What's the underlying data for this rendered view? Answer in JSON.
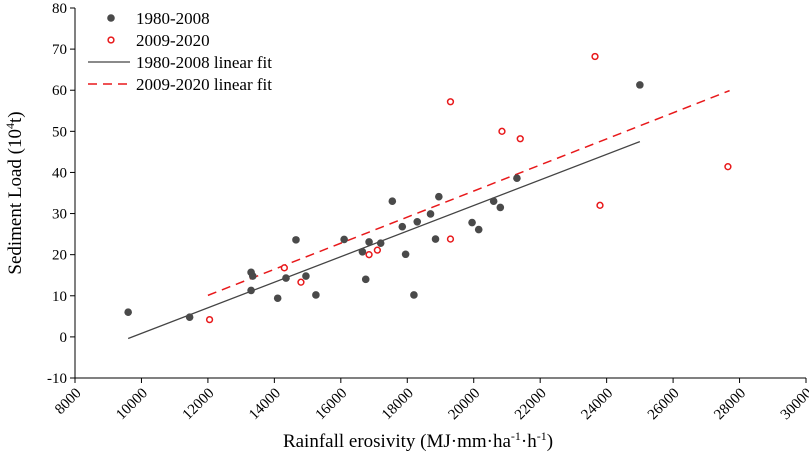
{
  "chart_data": {
    "type": "scatter",
    "xlabel_main": "Rainfall erosivity (MJ·mm·ha",
    "xlabel_sup1": "-1",
    "xlabel_mid": "·h",
    "xlabel_sup2": "-1",
    "xlabel_end": ")",
    "ylabel_main": "Sediment Load (10",
    "ylabel_sup": "4",
    "ylabel_end": "t)",
    "xlim": [
      8000,
      30000
    ],
    "ylim": [
      -10,
      80
    ],
    "xticks": [
      8000,
      10000,
      12000,
      14000,
      16000,
      18000,
      20000,
      22000,
      24000,
      26000,
      28000,
      30000
    ],
    "yticks": [
      -10,
      0,
      10,
      20,
      30,
      40,
      50,
      60,
      70,
      80
    ],
    "legend_position": "top-left",
    "series": [
      {
        "name": "1980-2008",
        "marker": "filled-circle",
        "color": "#4a4a4a",
        "points": [
          [
            9600,
            6
          ],
          [
            11450,
            4.8
          ],
          [
            13300,
            15.7
          ],
          [
            13350,
            14.8
          ],
          [
            13300,
            11.3
          ],
          [
            14100,
            9.4
          ],
          [
            14350,
            14.3
          ],
          [
            14650,
            23.6
          ],
          [
            14950,
            14.8
          ],
          [
            15250,
            10.2
          ],
          [
            16100,
            23.7
          ],
          [
            16650,
            20.7
          ],
          [
            16750,
            14
          ],
          [
            16850,
            23.1
          ],
          [
            17200,
            22.8
          ],
          [
            17550,
            33
          ],
          [
            17850,
            26.8
          ],
          [
            17950,
            20.1
          ],
          [
            18200,
            10.2
          ],
          [
            18300,
            28
          ],
          [
            18700,
            29.9
          ],
          [
            18850,
            23.8
          ],
          [
            18950,
            34.1
          ],
          [
            19950,
            27.8
          ],
          [
            20150,
            26.1
          ],
          [
            20600,
            33
          ],
          [
            20800,
            31.5
          ],
          [
            21300,
            38.6
          ],
          [
            25000,
            61.3
          ]
        ]
      },
      {
        "name": "2009-2020",
        "marker": "open-circle",
        "color": "#e8191b",
        "points": [
          [
            12050,
            4.2
          ],
          [
            14300,
            16.8
          ],
          [
            14800,
            13.3
          ],
          [
            16850,
            20
          ],
          [
            17100,
            21.1
          ],
          [
            19300,
            57.2
          ],
          [
            19300,
            23.8
          ],
          [
            20850,
            50
          ],
          [
            21400,
            48.2
          ],
          [
            23650,
            68.2
          ],
          [
            23800,
            32
          ],
          [
            27650,
            41.4
          ]
        ]
      }
    ],
    "fits": [
      {
        "name": "1980-2008  linear fit",
        "style": "solid",
        "color": "#444444",
        "x": [
          9600,
          25000
        ],
        "y": [
          -0.4,
          47.5
        ]
      },
      {
        "name": "2009-2020  linear fit",
        "style": "dashed",
        "color": "#e8191b",
        "x": [
          12000,
          27700
        ],
        "y": [
          10.1,
          59.9
        ]
      }
    ]
  }
}
